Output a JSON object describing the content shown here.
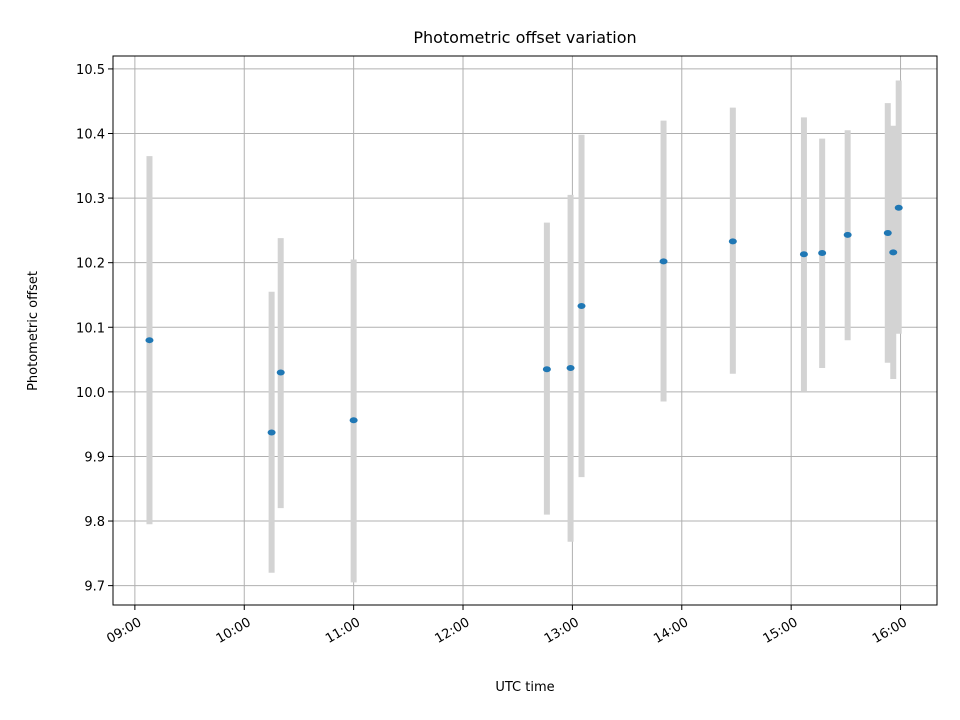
{
  "chart_data": {
    "type": "scatter",
    "title": "Photometric offset variation",
    "xlabel": "UTC time",
    "ylabel": "Photometric offset",
    "xlim": [
      "08:48",
      "16:20"
    ],
    "ylim": [
      9.67,
      10.52
    ],
    "x_ticks": [
      "09:00",
      "10:00",
      "11:00",
      "12:00",
      "13:00",
      "14:00",
      "15:00",
      "16:00"
    ],
    "y_ticks": [
      "9.7",
      "9.8",
      "9.9",
      "10.0",
      "10.1",
      "10.2",
      "10.3",
      "10.4",
      "10.5"
    ],
    "grid": true,
    "colors": {
      "points": "#1f77b4",
      "error_bars": "#d3d3d3"
    },
    "series": [
      {
        "points": [
          {
            "x": "09:08",
            "y": 10.08,
            "low": 9.795,
            "high": 10.365
          },
          {
            "x": "10:15",
            "y": 9.937,
            "low": 9.72,
            "high": 10.155
          },
          {
            "x": "10:20",
            "y": 10.03,
            "low": 9.82,
            "high": 10.238
          },
          {
            "x": "11:00",
            "y": 9.956,
            "low": 9.705,
            "high": 10.205
          },
          {
            "x": "12:46",
            "y": 10.035,
            "low": 9.81,
            "high": 10.262
          },
          {
            "x": "12:59",
            "y": 10.037,
            "low": 9.768,
            "high": 10.305
          },
          {
            "x": "13:05",
            "y": 10.133,
            "low": 9.868,
            "high": 10.398
          },
          {
            "x": "13:50",
            "y": 10.202,
            "low": 9.985,
            "high": 10.42
          },
          {
            "x": "14:28",
            "y": 10.233,
            "low": 10.028,
            "high": 10.44
          },
          {
            "x": "15:07",
            "y": 10.213,
            "low": 10.0,
            "high": 10.425
          },
          {
            "x": "15:17",
            "y": 10.215,
            "low": 10.037,
            "high": 10.392
          },
          {
            "x": "15:31",
            "y": 10.243,
            "low": 10.08,
            "high": 10.405
          },
          {
            "x": "15:53",
            "y": 10.246,
            "low": 10.045,
            "high": 10.447
          },
          {
            "x": "15:56",
            "y": 10.216,
            "low": 10.02,
            "high": 10.412
          },
          {
            "x": "15:59",
            "y": 10.285,
            "low": 10.09,
            "high": 10.482
          }
        ]
      }
    ]
  }
}
